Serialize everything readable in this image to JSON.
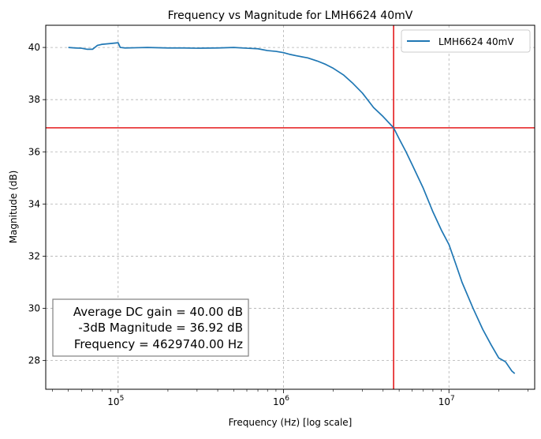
{
  "chart_data": {
    "type": "line",
    "title": "Frequency vs Magnitude for LMH6624 40mV",
    "xlabel": "Frequency (Hz) [log scale]",
    "ylabel": "Magnitude (dB)",
    "xscale": "log",
    "xlim": [
      36500,
      33000000
    ],
    "ylim": [
      26.9,
      40.85
    ],
    "grid": true,
    "legend_position": "top-right",
    "x_ticks": [
      {
        "value": 100000,
        "base": "10",
        "exp": "5"
      },
      {
        "value": 1000000,
        "base": "10",
        "exp": "6"
      },
      {
        "value": 10000000,
        "base": "10",
        "exp": "7"
      }
    ],
    "y_ticks": [
      28,
      30,
      32,
      34,
      36,
      38,
      40
    ],
    "series": [
      {
        "name": "LMH6624 40mV",
        "color": "#1f77b4",
        "x": [
          50000,
          55000,
          60000,
          65000,
          70000,
          75000,
          80000,
          90000,
          100000,
          103000,
          110000,
          130000,
          150000,
          200000,
          250000,
          300000,
          400000,
          500000,
          600000,
          700000,
          800000,
          900000,
          1000000,
          1100000,
          1200000,
          1400000,
          1600000,
          1800000,
          2000000,
          2300000,
          2600000,
          3000000,
          3500000,
          4000000,
          4629740,
          5000000,
          5500000,
          6000000,
          7000000,
          8000000,
          9000000,
          10000000,
          11000000,
          12000000,
          14000000,
          16000000,
          18000000,
          20000000,
          22000000,
          24000000,
          25000000
        ],
        "values": [
          40.0,
          39.98,
          39.97,
          39.93,
          39.93,
          40.08,
          40.12,
          40.15,
          40.18,
          40.0,
          39.98,
          39.99,
          40.0,
          39.98,
          39.98,
          39.97,
          39.98,
          40.0,
          39.97,
          39.95,
          39.88,
          39.85,
          39.8,
          39.73,
          39.68,
          39.6,
          39.48,
          39.35,
          39.2,
          38.95,
          38.65,
          38.25,
          37.7,
          37.35,
          36.92,
          36.5,
          36.0,
          35.5,
          34.6,
          33.7,
          33.0,
          32.45,
          31.7,
          31.0,
          30.0,
          29.2,
          28.6,
          28.1,
          27.95,
          27.6,
          27.5
        ]
      }
    ],
    "reference_lines": {
      "color": "#e41a1c",
      "horizontal_y": 36.92,
      "vertical_x": 4629740
    },
    "annotation": {
      "line1": "Average DC gain = 40.00 dB",
      "line2": "-3dB Magnitude = 36.92 dB",
      "line3": "Frequency = 4629740.00 Hz"
    }
  }
}
